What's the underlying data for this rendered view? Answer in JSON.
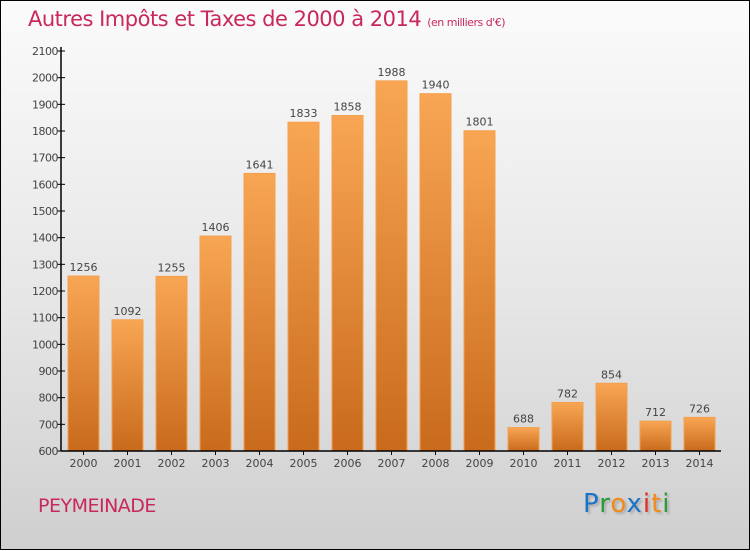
{
  "header": {
    "title": "Autres Impôts et Taxes de 2000 à 2014",
    "unit": "(en milliers d'€)"
  },
  "commune": "PEYMEINADE",
  "logo": {
    "letters": [
      "P",
      "r",
      "o",
      "x",
      "i",
      "t",
      "i"
    ],
    "colors": [
      "#1a73c9",
      "#2a9a3a",
      "#f28a1a",
      "#1a73c9",
      "#e0301e",
      "#f28a1a",
      "#2a9a3a"
    ]
  },
  "colors": {
    "bar_top": "#f8a654",
    "bar_bottom": "#c96a1c",
    "accent": "#c8285a"
  },
  "chart_data": {
    "type": "bar",
    "title": "Autres Impôts et Taxes de 2000 à 2014",
    "xlabel": "",
    "ylabel": "",
    "categories": [
      "2000",
      "2001",
      "2002",
      "2003",
      "2004",
      "2005",
      "2006",
      "2007",
      "2008",
      "2009",
      "2010",
      "2011",
      "2012",
      "2013",
      "2014"
    ],
    "values": [
      1256,
      1092,
      1255,
      1406,
      1641,
      1833,
      1858,
      1988,
      1940,
      1801,
      688,
      782,
      854,
      712,
      726
    ],
    "ylim": [
      600,
      2100
    ],
    "yticks": [
      600,
      700,
      800,
      900,
      1000,
      1100,
      1200,
      1300,
      1400,
      1500,
      1600,
      1700,
      1800,
      1900,
      2000,
      2100
    ],
    "grid": false,
    "legend": "none"
  }
}
